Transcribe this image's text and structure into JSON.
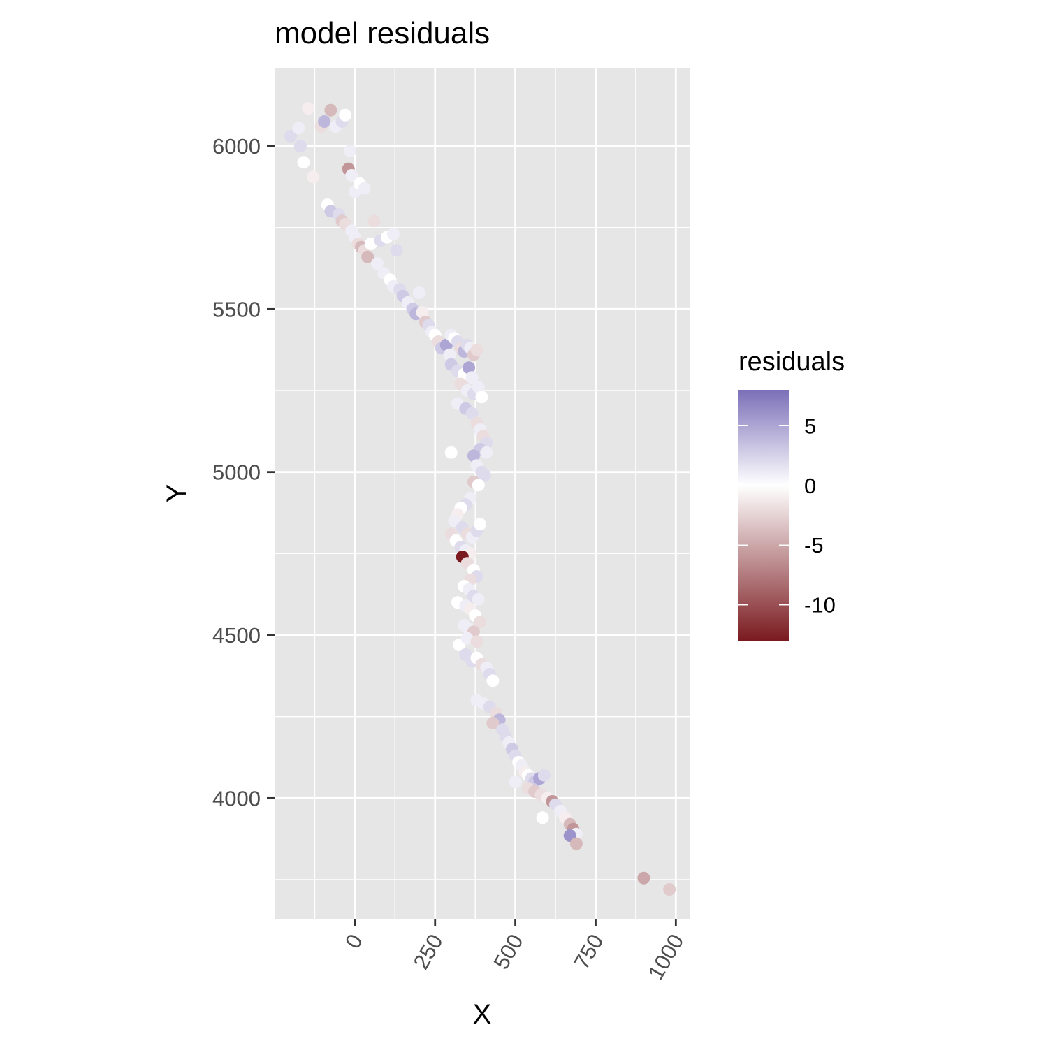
{
  "chart_data": {
    "type": "scatter",
    "title": "model residuals",
    "xlabel": "X",
    "ylabel": "Y",
    "xlim": [
      -250,
      1045
    ],
    "ylim": [
      3630,
      6240
    ],
    "x_ticks": [
      0,
      250,
      500,
      750,
      1000
    ],
    "x_tick_labels": [
      "0",
      "250",
      "500",
      "750",
      "1000"
    ],
    "y_ticks": [
      4000,
      4500,
      5000,
      5500,
      6000
    ],
    "y_tick_labels": [
      "4000",
      "4500",
      "5000",
      "5500",
      "6000"
    ],
    "x_minor": [
      -125,
      125,
      375,
      625,
      875
    ],
    "y_minor": [
      3750,
      4250,
      4750,
      5250,
      5750
    ],
    "grid": true,
    "legend": {
      "title": "residuals",
      "position": "right",
      "range": [
        -13,
        8
      ],
      "ticks": [
        5,
        0,
        -5,
        -10
      ],
      "tick_labels": [
        "5",
        "0",
        "-5",
        "-10"
      ],
      "colors": {
        "low": "#7a1a1f",
        "mid": "#ffffff",
        "high": "#7b6fb8"
      }
    },
    "points": [
      [
        -200,
        6030,
        2
      ],
      [
        -175,
        6055,
        1
      ],
      [
        -170,
        6000,
        2
      ],
      [
        -160,
        5950,
        0
      ],
      [
        -145,
        6115,
        -1
      ],
      [
        -130,
        5905,
        -1
      ],
      [
        -105,
        6060,
        -2
      ],
      [
        -95,
        6075,
        4
      ],
      [
        -75,
        6110,
        -4
      ],
      [
        -60,
        6060,
        1
      ],
      [
        -40,
        6075,
        2
      ],
      [
        -30,
        6095,
        0
      ],
      [
        -15,
        5985,
        1
      ],
      [
        -20,
        5930,
        -6
      ],
      [
        -10,
        5910,
        1
      ],
      [
        0,
        5860,
        1
      ],
      [
        15,
        5885,
        0
      ],
      [
        30,
        5870,
        1
      ],
      [
        -85,
        5820,
        0
      ],
      [
        -75,
        5800,
        3
      ],
      [
        -50,
        5790,
        2
      ],
      [
        -40,
        5770,
        -3
      ],
      [
        -30,
        5760,
        -2
      ],
      [
        -10,
        5740,
        1
      ],
      [
        0,
        5720,
        1
      ],
      [
        10,
        5700,
        -2
      ],
      [
        20,
        5690,
        -4
      ],
      [
        30,
        5680,
        -2
      ],
      [
        40,
        5660,
        -4
      ],
      [
        50,
        5700,
        0
      ],
      [
        60,
        5770,
        -2
      ],
      [
        80,
        5710,
        2
      ],
      [
        100,
        5720,
        0
      ],
      [
        120,
        5730,
        1
      ],
      [
        130,
        5680,
        2
      ],
      [
        70,
        5640,
        1
      ],
      [
        90,
        5610,
        1
      ],
      [
        110,
        5590,
        0
      ],
      [
        120,
        5570,
        1
      ],
      [
        140,
        5560,
        2
      ],
      [
        150,
        5540,
        3
      ],
      [
        165,
        5520,
        1
      ],
      [
        180,
        5500,
        3
      ],
      [
        190,
        5485,
        4
      ],
      [
        200,
        5550,
        1
      ],
      [
        210,
        5490,
        -1
      ],
      [
        220,
        5460,
        -3
      ],
      [
        230,
        5450,
        2
      ],
      [
        240,
        5430,
        1
      ],
      [
        250,
        5420,
        0
      ],
      [
        260,
        5400,
        -2
      ],
      [
        270,
        5380,
        3
      ],
      [
        285,
        5390,
        5
      ],
      [
        295,
        5360,
        1
      ],
      [
        300,
        5420,
        1
      ],
      [
        310,
        5410,
        0
      ],
      [
        320,
        5400,
        2
      ],
      [
        330,
        5380,
        -2
      ],
      [
        340,
        5370,
        4
      ],
      [
        350,
        5390,
        2
      ],
      [
        360,
        5380,
        1
      ],
      [
        370,
        5360,
        -3
      ],
      [
        380,
        5375,
        -2
      ],
      [
        300,
        5330,
        3
      ],
      [
        320,
        5310,
        2
      ],
      [
        340,
        5300,
        0
      ],
      [
        355,
        5320,
        5
      ],
      [
        365,
        5290,
        1
      ],
      [
        330,
        5270,
        -2
      ],
      [
        350,
        5250,
        1
      ],
      [
        370,
        5240,
        2
      ],
      [
        385,
        5260,
        1
      ],
      [
        395,
        5230,
        0
      ],
      [
        320,
        5210,
        1
      ],
      [
        345,
        5195,
        3
      ],
      [
        365,
        5180,
        2
      ],
      [
        380,
        5150,
        -2
      ],
      [
        390,
        5130,
        1
      ],
      [
        400,
        5110,
        -2
      ],
      [
        410,
        5090,
        2
      ],
      [
        390,
        5070,
        3
      ],
      [
        370,
        5050,
        4
      ],
      [
        410,
        5060,
        1
      ],
      [
        380,
        5020,
        1
      ],
      [
        395,
        5000,
        2
      ],
      [
        405,
        4990,
        2
      ],
      [
        370,
        4970,
        -3
      ],
      [
        385,
        4960,
        0
      ],
      [
        300,
        5060,
        0
      ],
      [
        360,
        4920,
        1
      ],
      [
        345,
        4900,
        2
      ],
      [
        330,
        4890,
        0
      ],
      [
        320,
        4870,
        -1
      ],
      [
        310,
        4850,
        1
      ],
      [
        335,
        4830,
        2
      ],
      [
        350,
        4810,
        -2
      ],
      [
        365,
        4800,
        1
      ],
      [
        380,
        4820,
        2
      ],
      [
        390,
        4840,
        0
      ],
      [
        300,
        4810,
        -2
      ],
      [
        315,
        4790,
        0
      ],
      [
        330,
        4770,
        2
      ],
      [
        345,
        4760,
        1
      ],
      [
        360,
        4750,
        -1
      ],
      [
        335,
        4740,
        -13
      ],
      [
        350,
        4720,
        -2
      ],
      [
        370,
        4700,
        0
      ],
      [
        380,
        4680,
        2
      ],
      [
        360,
        4670,
        -2
      ],
      [
        340,
        4650,
        0
      ],
      [
        355,
        4640,
        1
      ],
      [
        370,
        4620,
        2
      ],
      [
        385,
        4610,
        1
      ],
      [
        320,
        4600,
        0
      ],
      [
        345,
        4590,
        1
      ],
      [
        360,
        4580,
        -1
      ],
      [
        375,
        4560,
        0
      ],
      [
        390,
        4540,
        -2
      ],
      [
        340,
        4530,
        1
      ],
      [
        355,
        4520,
        1
      ],
      [
        370,
        4510,
        -3
      ],
      [
        325,
        4470,
        0
      ],
      [
        350,
        4490,
        1
      ],
      [
        380,
        4480,
        -2
      ],
      [
        345,
        4440,
        2
      ],
      [
        365,
        4420,
        2
      ],
      [
        380,
        4430,
        0
      ],
      [
        395,
        4410,
        -2
      ],
      [
        410,
        4400,
        1
      ],
      [
        420,
        4380,
        2
      ],
      [
        430,
        4360,
        0
      ],
      [
        380,
        4300,
        1
      ],
      [
        400,
        4290,
        1
      ],
      [
        420,
        4280,
        2
      ],
      [
        440,
        4260,
        -2
      ],
      [
        450,
        4240,
        4
      ],
      [
        430,
        4230,
        -3
      ],
      [
        460,
        4210,
        2
      ],
      [
        470,
        4190,
        2
      ],
      [
        480,
        4170,
        1
      ],
      [
        490,
        4150,
        3
      ],
      [
        500,
        4130,
        2
      ],
      [
        510,
        4110,
        0
      ],
      [
        520,
        4100,
        1
      ],
      [
        530,
        4080,
        -1
      ],
      [
        540,
        4070,
        0
      ],
      [
        550,
        4060,
        2
      ],
      [
        560,
        4050,
        3
      ],
      [
        575,
        4060,
        5
      ],
      [
        590,
        4070,
        2
      ],
      [
        500,
        4050,
        1
      ],
      [
        540,
        4030,
        -2
      ],
      [
        560,
        4020,
        -3
      ],
      [
        580,
        4010,
        -2
      ],
      [
        600,
        4000,
        -1
      ],
      [
        615,
        3990,
        -6
      ],
      [
        625,
        3980,
        2
      ],
      [
        640,
        3960,
        1
      ],
      [
        655,
        3940,
        -1
      ],
      [
        670,
        3920,
        -4
      ],
      [
        680,
        3905,
        -6
      ],
      [
        690,
        3890,
        1
      ],
      [
        670,
        3885,
        6
      ],
      [
        690,
        3860,
        -4
      ],
      [
        585,
        3940,
        0
      ],
      [
        900,
        3755,
        -5
      ],
      [
        980,
        3720,
        -3
      ]
    ]
  }
}
